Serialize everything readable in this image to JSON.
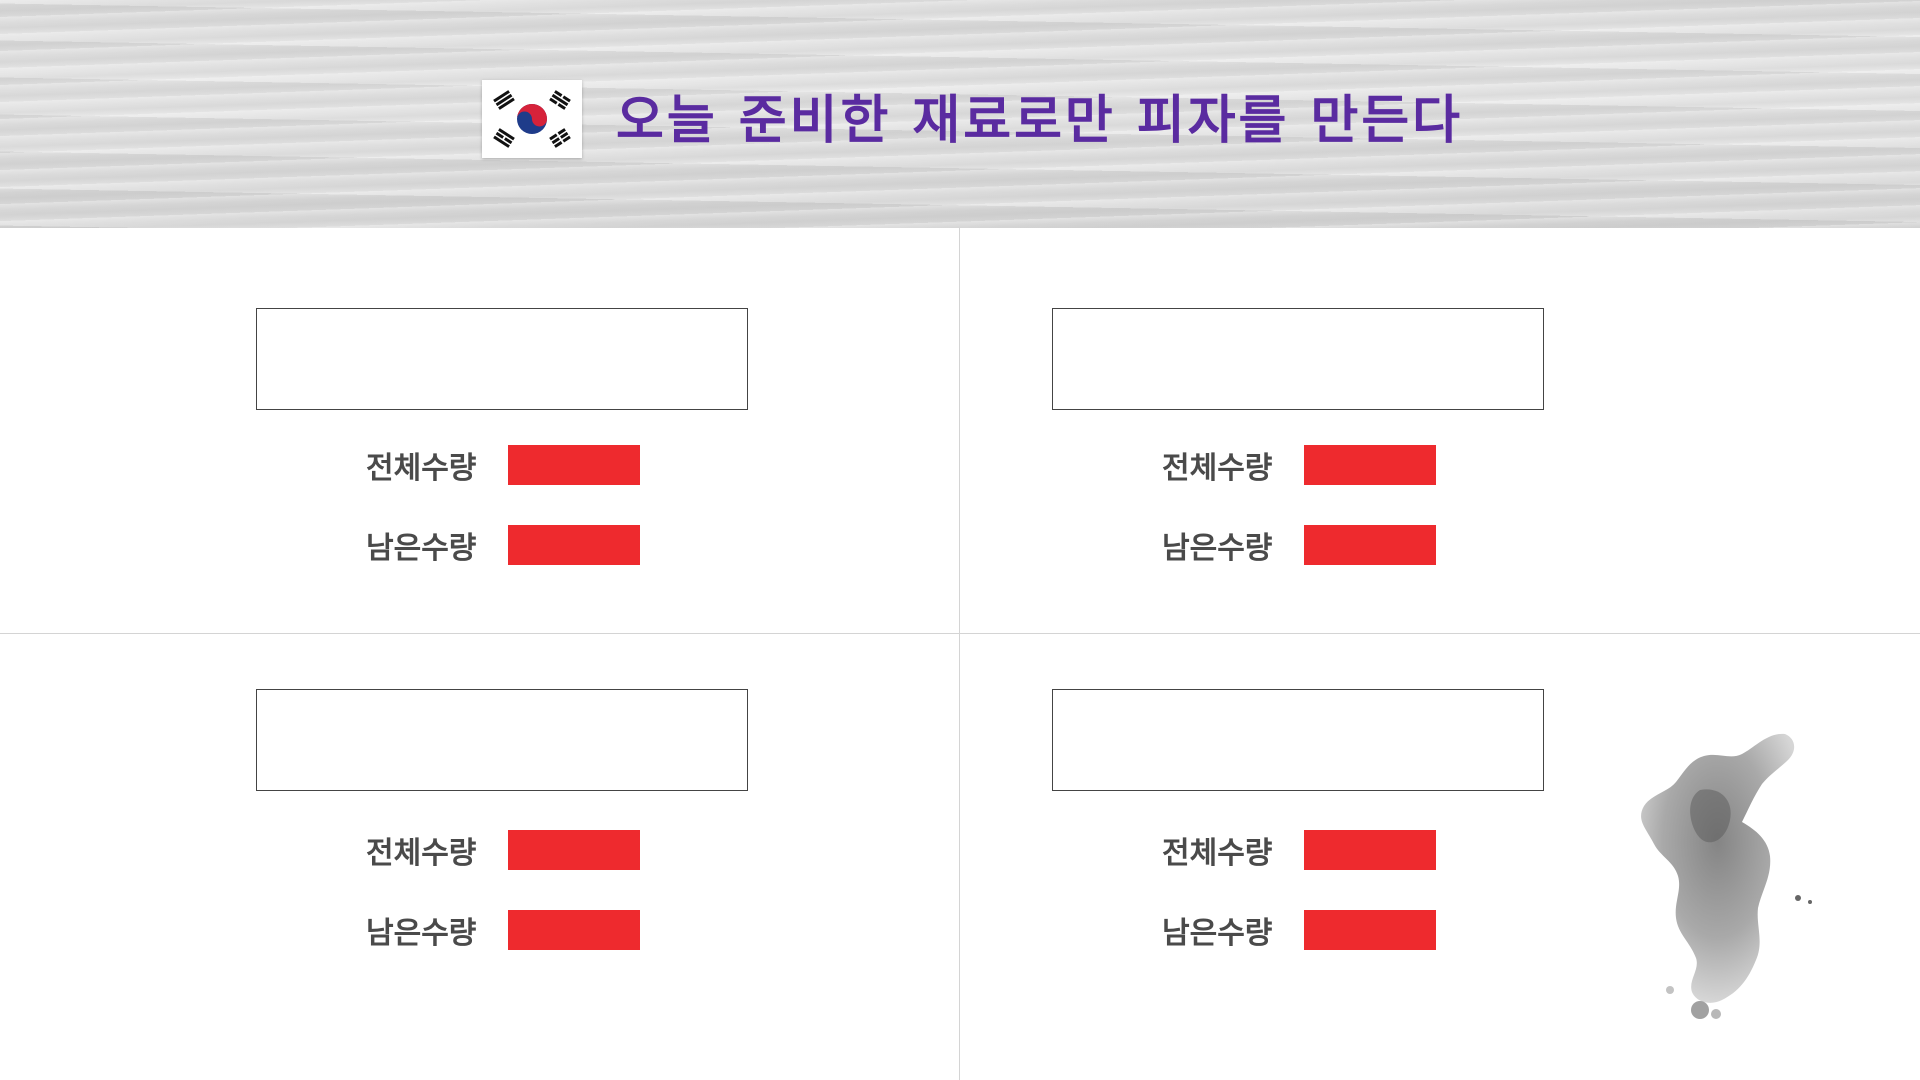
{
  "header": {
    "title": "오늘 준비한 재료로만 피자를 만든다",
    "title_color": "#5a2ba0",
    "flag_icon": "korea-flag-icon"
  },
  "panels": [
    {
      "name_value": "",
      "total_label": "전체수량",
      "total_value": "",
      "remaining_label": "남은수량",
      "remaining_value": ""
    },
    {
      "name_value": "",
      "total_label": "전체수량",
      "total_value": "",
      "remaining_label": "남은수량",
      "remaining_value": ""
    },
    {
      "name_value": "",
      "total_label": "전체수량",
      "total_value": "",
      "remaining_label": "남은수량",
      "remaining_value": ""
    },
    {
      "name_value": "",
      "total_label": "전체수량",
      "total_value": "",
      "remaining_label": "남은수량",
      "remaining_value": ""
    }
  ],
  "colors": {
    "bar": "#ee2a2e",
    "label": "#4a4a4a",
    "divider": "#d4d4d4"
  },
  "decoration": {
    "map_icon": "korea-peninsula-map-icon"
  }
}
